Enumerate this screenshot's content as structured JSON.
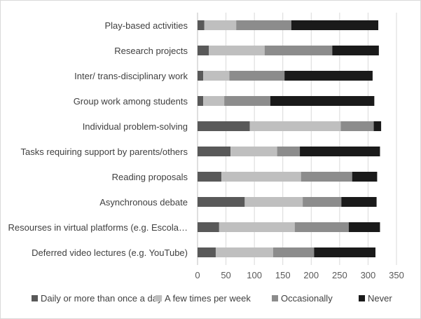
{
  "chart_data": {
    "type": "bar",
    "orientation": "horizontal",
    "stacked": true,
    "categories": [
      "Play-based activities",
      "Research projects",
      "Inter/ trans-disciplinary work",
      "Group work among students",
      "Individual problem-solving",
      "Tasks requiring support by parents/others",
      "Reading proposals",
      "Asynchronous debate",
      "Resourses in virtual platforms (e.g. Escola…",
      "Deferred video lectures (e.g. YouTube)"
    ],
    "series": [
      {
        "name": "Daily or more than once a day",
        "color": "#595959",
        "values": [
          12,
          20,
          10,
          10,
          92,
          58,
          42,
          83,
          38,
          32
        ]
      },
      {
        "name": "A few times per week",
        "color": "#bfbfbf",
        "values": [
          56,
          98,
          46,
          37,
          160,
          82,
          140,
          102,
          133,
          101
        ]
      },
      {
        "name": "Occasionally",
        "color": "#8c8c8c",
        "values": [
          97,
          119,
          97,
          81,
          58,
          40,
          90,
          68,
          95,
          72
        ]
      },
      {
        "name": "Never",
        "color": "#1a1a1a",
        "values": [
          153,
          82,
          155,
          183,
          13,
          141,
          44,
          62,
          55,
          108
        ]
      }
    ],
    "xlim": [
      0,
      350
    ],
    "xticks": [
      0,
      50,
      100,
      150,
      200,
      250,
      300,
      350
    ],
    "grid": true,
    "legend_position": "bottom"
  }
}
